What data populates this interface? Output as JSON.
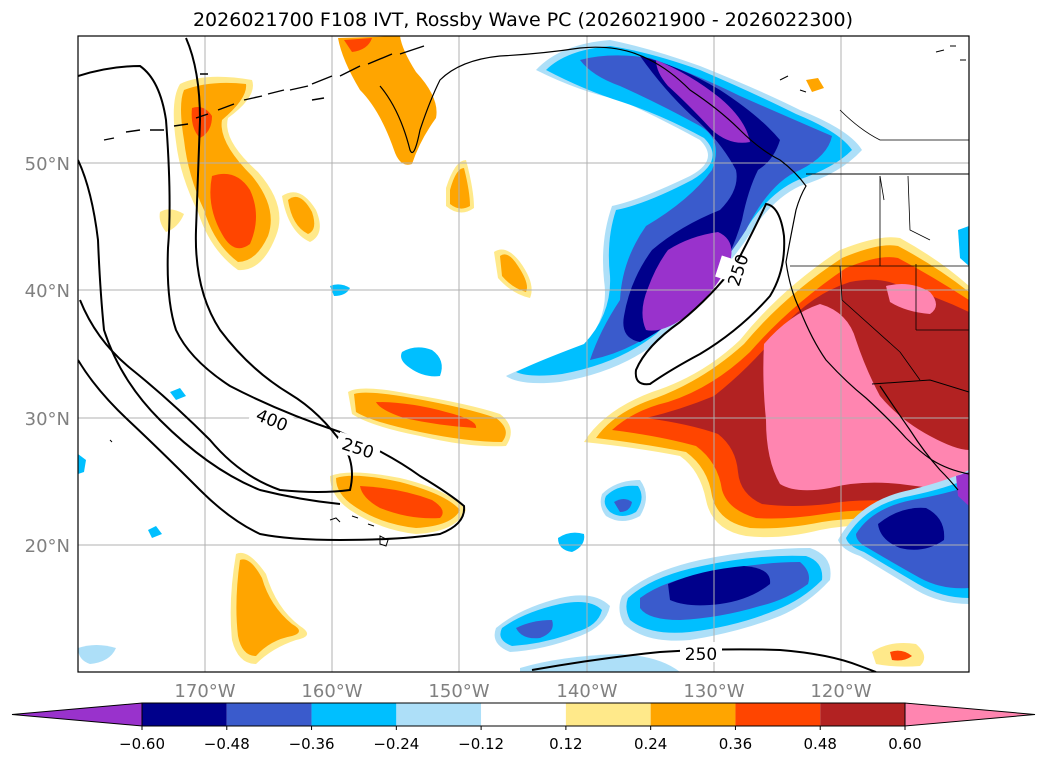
{
  "title": "2026021700 F108 IVT, Rossby Wave PC (2026021900 - 2026022300)",
  "map": {
    "lat_labels": [
      "50°N",
      "40°N",
      "30°N",
      "20°N"
    ],
    "lon_labels": [
      "170°W",
      "160°W",
      "150°W",
      "140°W",
      "130°W",
      "120°W"
    ],
    "contour_labels": [
      "400",
      "250",
      "250",
      "250"
    ]
  },
  "colorbar": {
    "ticks": [
      "−0.60",
      "−0.48",
      "−0.36",
      "−0.24",
      "−0.12",
      "0.12",
      "0.24",
      "0.36",
      "0.48",
      "0.60"
    ],
    "colors": [
      "#9932CC",
      "#00008B",
      "#3A5BCC",
      "#00BFFF",
      "#ADDFF8",
      "#FFFFFF",
      "#FFE98A",
      "#FFA500",
      "#FF4500",
      "#B22222",
      "#FF85B0"
    ]
  },
  "colors": {
    "v1": "#9932CC",
    "v2": "#00008B",
    "v3": "#3A5BCC",
    "v4": "#00BFFF",
    "v5": "#ADDFF8",
    "r1": "#FFE98A",
    "r2": "#FFA500",
    "r3": "#FF4500",
    "r4": "#B22222",
    "r5": "#FF85B0"
  }
}
